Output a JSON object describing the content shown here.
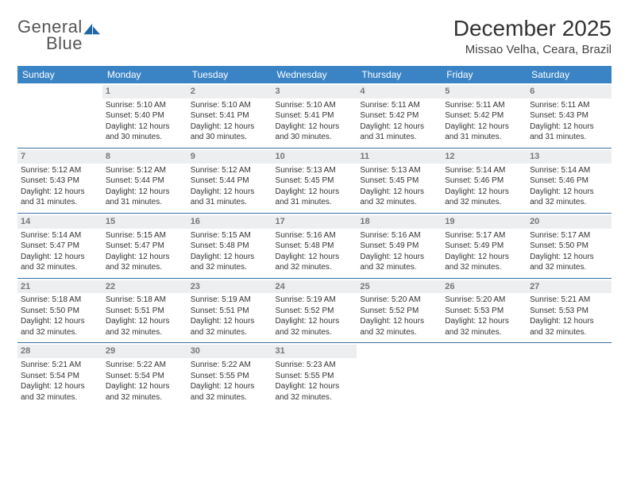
{
  "logo": {
    "word1": "General",
    "word2": "Blue"
  },
  "title": "December 2025",
  "location": "Missao Velha, Ceara, Brazil",
  "colors": {
    "header_bg": "#3a84c5",
    "header_text": "#ffffff",
    "row_rule": "#3a6fa0",
    "daynum_bg": "#eceef0",
    "daynum_text": "#777777",
    "body_text": "#333333",
    "logo_accent": "#1f66a8"
  },
  "weekdays": [
    "Sunday",
    "Monday",
    "Tuesday",
    "Wednesday",
    "Thursday",
    "Friday",
    "Saturday"
  ],
  "weeks": [
    [
      null,
      {
        "n": "1",
        "sr": "Sunrise: 5:10 AM",
        "ss": "Sunset: 5:40 PM",
        "dl": "Daylight: 12 hours and 30 minutes."
      },
      {
        "n": "2",
        "sr": "Sunrise: 5:10 AM",
        "ss": "Sunset: 5:41 PM",
        "dl": "Daylight: 12 hours and 30 minutes."
      },
      {
        "n": "3",
        "sr": "Sunrise: 5:10 AM",
        "ss": "Sunset: 5:41 PM",
        "dl": "Daylight: 12 hours and 30 minutes."
      },
      {
        "n": "4",
        "sr": "Sunrise: 5:11 AM",
        "ss": "Sunset: 5:42 PM",
        "dl": "Daylight: 12 hours and 31 minutes."
      },
      {
        "n": "5",
        "sr": "Sunrise: 5:11 AM",
        "ss": "Sunset: 5:42 PM",
        "dl": "Daylight: 12 hours and 31 minutes."
      },
      {
        "n": "6",
        "sr": "Sunrise: 5:11 AM",
        "ss": "Sunset: 5:43 PM",
        "dl": "Daylight: 12 hours and 31 minutes."
      }
    ],
    [
      {
        "n": "7",
        "sr": "Sunrise: 5:12 AM",
        "ss": "Sunset: 5:43 PM",
        "dl": "Daylight: 12 hours and 31 minutes."
      },
      {
        "n": "8",
        "sr": "Sunrise: 5:12 AM",
        "ss": "Sunset: 5:44 PM",
        "dl": "Daylight: 12 hours and 31 minutes."
      },
      {
        "n": "9",
        "sr": "Sunrise: 5:12 AM",
        "ss": "Sunset: 5:44 PM",
        "dl": "Daylight: 12 hours and 31 minutes."
      },
      {
        "n": "10",
        "sr": "Sunrise: 5:13 AM",
        "ss": "Sunset: 5:45 PM",
        "dl": "Daylight: 12 hours and 31 minutes."
      },
      {
        "n": "11",
        "sr": "Sunrise: 5:13 AM",
        "ss": "Sunset: 5:45 PM",
        "dl": "Daylight: 12 hours and 32 minutes."
      },
      {
        "n": "12",
        "sr": "Sunrise: 5:14 AM",
        "ss": "Sunset: 5:46 PM",
        "dl": "Daylight: 12 hours and 32 minutes."
      },
      {
        "n": "13",
        "sr": "Sunrise: 5:14 AM",
        "ss": "Sunset: 5:46 PM",
        "dl": "Daylight: 12 hours and 32 minutes."
      }
    ],
    [
      {
        "n": "14",
        "sr": "Sunrise: 5:14 AM",
        "ss": "Sunset: 5:47 PM",
        "dl": "Daylight: 12 hours and 32 minutes."
      },
      {
        "n": "15",
        "sr": "Sunrise: 5:15 AM",
        "ss": "Sunset: 5:47 PM",
        "dl": "Daylight: 12 hours and 32 minutes."
      },
      {
        "n": "16",
        "sr": "Sunrise: 5:15 AM",
        "ss": "Sunset: 5:48 PM",
        "dl": "Daylight: 12 hours and 32 minutes."
      },
      {
        "n": "17",
        "sr": "Sunrise: 5:16 AM",
        "ss": "Sunset: 5:48 PM",
        "dl": "Daylight: 12 hours and 32 minutes."
      },
      {
        "n": "18",
        "sr": "Sunrise: 5:16 AM",
        "ss": "Sunset: 5:49 PM",
        "dl": "Daylight: 12 hours and 32 minutes."
      },
      {
        "n": "19",
        "sr": "Sunrise: 5:17 AM",
        "ss": "Sunset: 5:49 PM",
        "dl": "Daylight: 12 hours and 32 minutes."
      },
      {
        "n": "20",
        "sr": "Sunrise: 5:17 AM",
        "ss": "Sunset: 5:50 PM",
        "dl": "Daylight: 12 hours and 32 minutes."
      }
    ],
    [
      {
        "n": "21",
        "sr": "Sunrise: 5:18 AM",
        "ss": "Sunset: 5:50 PM",
        "dl": "Daylight: 12 hours and 32 minutes."
      },
      {
        "n": "22",
        "sr": "Sunrise: 5:18 AM",
        "ss": "Sunset: 5:51 PM",
        "dl": "Daylight: 12 hours and 32 minutes."
      },
      {
        "n": "23",
        "sr": "Sunrise: 5:19 AM",
        "ss": "Sunset: 5:51 PM",
        "dl": "Daylight: 12 hours and 32 minutes."
      },
      {
        "n": "24",
        "sr": "Sunrise: 5:19 AM",
        "ss": "Sunset: 5:52 PM",
        "dl": "Daylight: 12 hours and 32 minutes."
      },
      {
        "n": "25",
        "sr": "Sunrise: 5:20 AM",
        "ss": "Sunset: 5:52 PM",
        "dl": "Daylight: 12 hours and 32 minutes."
      },
      {
        "n": "26",
        "sr": "Sunrise: 5:20 AM",
        "ss": "Sunset: 5:53 PM",
        "dl": "Daylight: 12 hours and 32 minutes."
      },
      {
        "n": "27",
        "sr": "Sunrise: 5:21 AM",
        "ss": "Sunset: 5:53 PM",
        "dl": "Daylight: 12 hours and 32 minutes."
      }
    ],
    [
      {
        "n": "28",
        "sr": "Sunrise: 5:21 AM",
        "ss": "Sunset: 5:54 PM",
        "dl": "Daylight: 12 hours and 32 minutes."
      },
      {
        "n": "29",
        "sr": "Sunrise: 5:22 AM",
        "ss": "Sunset: 5:54 PM",
        "dl": "Daylight: 12 hours and 32 minutes."
      },
      {
        "n": "30",
        "sr": "Sunrise: 5:22 AM",
        "ss": "Sunset: 5:55 PM",
        "dl": "Daylight: 12 hours and 32 minutes."
      },
      {
        "n": "31",
        "sr": "Sunrise: 5:23 AM",
        "ss": "Sunset: 5:55 PM",
        "dl": "Daylight: 12 hours and 32 minutes."
      },
      null,
      null,
      null
    ]
  ]
}
